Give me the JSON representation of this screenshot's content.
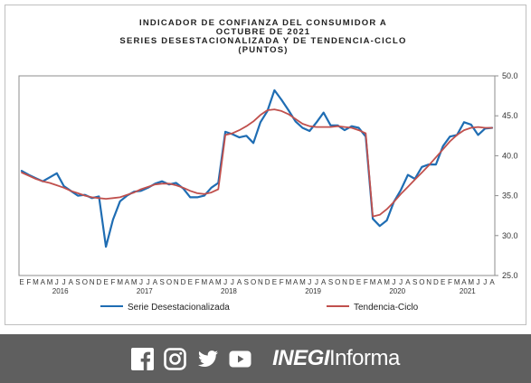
{
  "chart_data": {
    "type": "line",
    "title_lines": [
      "INDICADOR DE CONFIANZA DEL CONSUMIDOR A",
      "OCTUBRE DE 2021",
      "SERIES DESESTACIONALIZADA Y DE TENDENCIA-CICLO",
      "(PUNTOS)"
    ],
    "ylim": [
      25,
      50
    ],
    "yticks": [
      "25.0",
      "30.0",
      "35.0",
      "40.0",
      "45.0",
      "50.0"
    ],
    "month_labels": [
      "E",
      "F",
      "M",
      "A",
      "M",
      "J",
      "J",
      "A",
      "S",
      "O",
      "N",
      "D"
    ],
    "years": [
      "2016",
      "2017",
      "2018",
      "2019",
      "2020",
      "2021"
    ],
    "x_start": "2016-01",
    "x_end": "2021-10",
    "grid": false,
    "legend_position": "bottom",
    "series": [
      {
        "name": "Serie Desestacionalizada",
        "color": "#1f6db3",
        "values": [
          38.1,
          37.6,
          37.2,
          36.8,
          37.3,
          37.8,
          36.2,
          35.6,
          35.0,
          35.1,
          34.7,
          34.9,
          28.6,
          32.0,
          34.3,
          35.0,
          35.5,
          35.6,
          36.0,
          36.5,
          36.8,
          36.4,
          36.6,
          35.9,
          34.8,
          34.8,
          35.0,
          36.0,
          36.6,
          43.0,
          42.7,
          42.3,
          42.5,
          41.6,
          44.2,
          45.6,
          48.2,
          47.0,
          45.7,
          44.3,
          43.5,
          43.1,
          44.2,
          45.4,
          43.8,
          43.8,
          43.2,
          43.7,
          43.5,
          42.4,
          32.1,
          31.2,
          31.9,
          34.2,
          35.7,
          37.6,
          37.1,
          38.6,
          38.9,
          38.9,
          41.2,
          42.4,
          42.6,
          44.2,
          43.9,
          42.6,
          43.4,
          43.5
        ]
      },
      {
        "name": "Tendencia-Ciclo",
        "color": "#c0504d",
        "values": [
          37.9,
          37.5,
          37.1,
          36.8,
          36.6,
          36.3,
          36.0,
          35.6,
          35.3,
          35.0,
          34.8,
          34.7,
          34.6,
          34.7,
          34.8,
          35.1,
          35.4,
          35.8,
          36.1,
          36.4,
          36.5,
          36.5,
          36.3,
          36.0,
          35.6,
          35.3,
          35.2,
          35.4,
          35.8,
          42.6,
          42.8,
          43.2,
          43.7,
          44.3,
          45.1,
          45.7,
          45.8,
          45.6,
          45.2,
          44.6,
          44.0,
          43.7,
          43.6,
          43.6,
          43.6,
          43.7,
          43.6,
          43.5,
          43.2,
          42.8,
          32.4,
          32.6,
          33.3,
          34.2,
          35.2,
          36.1,
          37.0,
          37.9,
          38.8,
          39.8,
          40.8,
          41.8,
          42.6,
          43.2,
          43.5,
          43.6,
          43.5,
          43.5
        ]
      }
    ]
  },
  "footer": {
    "social_icons": [
      "facebook-icon",
      "instagram-icon",
      "twitter-icon",
      "youtube-icon"
    ],
    "brand_strong": "INEGI",
    "brand_light": "Informa",
    "background": "#5f5f5f"
  }
}
